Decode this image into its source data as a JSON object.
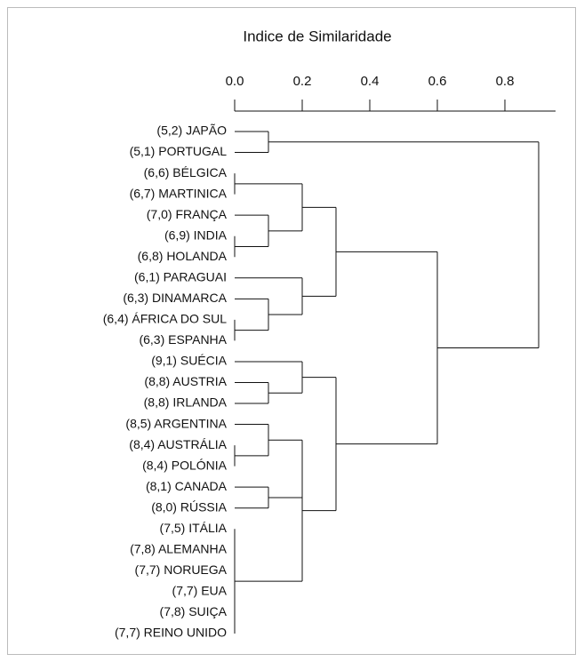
{
  "chart_data": {
    "type": "dendrogram",
    "title": "Indice de Similaridade",
    "xlim": [
      0,
      0.95
    ],
    "xticks": [
      {
        "value": 0,
        "label": "0.0"
      },
      0.2,
      0.4,
      0.6,
      0.8
    ],
    "tree": {
      "height": 0.9,
      "children": [
        {
          "height": 0.1,
          "children": [
            {
              "label": "(5,2) JAPÃO"
            },
            {
              "label": "(5,1) PORTUGAL"
            }
          ]
        },
        {
          "height": 0.6,
          "children": [
            {
              "height": 0.3,
              "children": [
                {
                  "height": 0.2,
                  "children": [
                    {
                      "height": 0,
                      "children": [
                        {
                          "label": "(6,6) BÉLGICA"
                        },
                        {
                          "label": "(6,7) MARTINICA"
                        }
                      ]
                    },
                    {
                      "height": 0.1,
                      "children": [
                        {
                          "label": "(7,0) FRANÇA"
                        },
                        {
                          "height": 0,
                          "children": [
                            {
                              "label": "(6,9) INDIA"
                            },
                            {
                              "label": "(6,8) HOLANDA"
                            }
                          ]
                        }
                      ]
                    }
                  ]
                },
                {
                  "height": 0.2,
                  "children": [
                    {
                      "label": "(6,1) PARAGUAI"
                    },
                    {
                      "height": 0.1,
                      "children": [
                        {
                          "label": "(6,3) DINAMARCA"
                        },
                        {
                          "height": 0,
                          "children": [
                            {
                              "label": "(6,4) ÁFRICA DO SUL"
                            },
                            {
                              "label": "(6,3) ESPANHA"
                            }
                          ]
                        }
                      ]
                    }
                  ]
                }
              ]
            },
            {
              "height": 0.3,
              "children": [
                {
                  "height": 0.2,
                  "children": [
                    {
                      "label": "(9,1) SUÉCIA"
                    },
                    {
                      "height": 0.1,
                      "children": [
                        {
                          "label": "(8,8) AUSTRIA"
                        },
                        {
                          "label": "(8,8) IRLANDA"
                        }
                      ]
                    }
                  ]
                },
                {
                  "height": 0.2,
                  "children": [
                    {
                      "height": 0.1,
                      "children": [
                        {
                          "label": "(8,5) ARGENTINA"
                        },
                        {
                          "height": 0,
                          "children": [
                            {
                              "label": "(8,4) AUSTRÁLIA"
                            },
                            {
                              "label": "(8,4) POLÓNIA"
                            }
                          ]
                        }
                      ]
                    },
                    {
                      "height": 0.1,
                      "children": [
                        {
                          "label": "(8,1) CANADA"
                        },
                        {
                          "label": "(8,0) RÚSSIA"
                        }
                      ]
                    },
                    {
                      "height": 0,
                      "children": [
                        {
                          "label": "(7,5) ITÁLIA"
                        },
                        {
                          "label": "(7,8) ALEMANHA"
                        },
                        {
                          "label": "(7,7) NORUEGA"
                        },
                        {
                          "label": "(7,7) EUA"
                        },
                        {
                          "label": "(7,8) SUIÇA"
                        },
                        {
                          "label": "(7,7) REINO UNIDO"
                        }
                      ]
                    }
                  ]
                }
              ]
            }
          ]
        }
      ]
    }
  }
}
